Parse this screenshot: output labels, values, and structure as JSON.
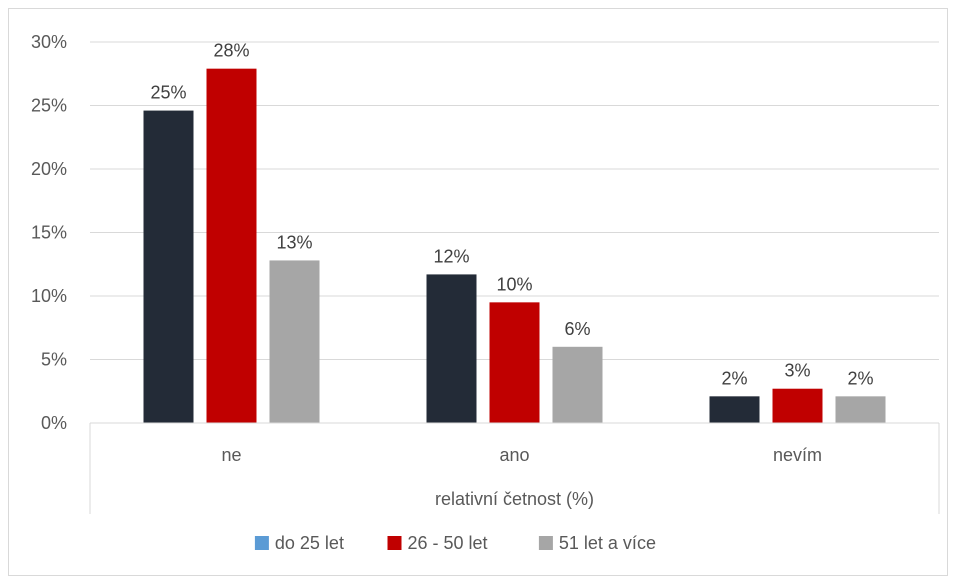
{
  "chart_data": {
    "type": "bar",
    "categories": [
      "ne",
      "ano",
      "nevím"
    ],
    "xlabel": "relativní četnost (%)",
    "ylabel": "",
    "ylim": [
      0,
      30
    ],
    "yticks": [
      "0%",
      "5%",
      "10%",
      "15%",
      "20%",
      "25%",
      "30%"
    ],
    "grid": true,
    "legend_position": "bottom",
    "series": [
      {
        "name": "do 25 let",
        "color": "#232b37",
        "legend_color": "#5b9bd5",
        "values": [
          24.6,
          11.7,
          2.1
        ],
        "labels": [
          "25%",
          "12%",
          "2%"
        ]
      },
      {
        "name": "26 - 50 let",
        "color": "#c00000",
        "legend_color": "#c00000",
        "values": [
          27.9,
          9.5,
          2.7
        ],
        "labels": [
          "28%",
          "10%",
          "3%"
        ]
      },
      {
        "name": "51 let a více",
        "color": "#a6a6a6",
        "legend_color": "#a6a6a6",
        "values": [
          12.8,
          6.0,
          2.1
        ],
        "labels": [
          "13%",
          "6%",
          "2%"
        ]
      }
    ]
  }
}
